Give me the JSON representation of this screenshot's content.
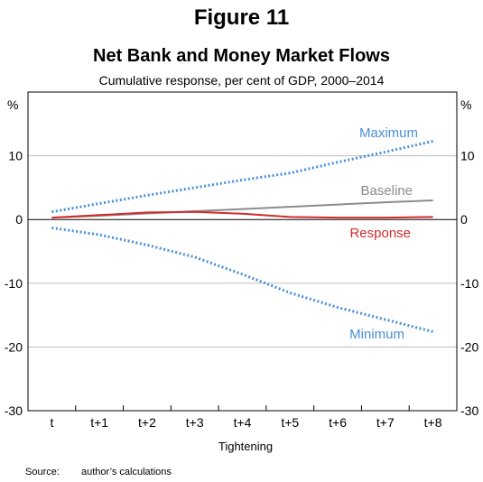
{
  "figure_label": "Figure 11",
  "source": {
    "label": "Source:",
    "text": "author’s calculations"
  },
  "chart_data": {
    "type": "line",
    "title": "Net Bank and Money Market Flows",
    "subtitle": "Cumulative response, per cent of GDP, 2000–2014",
    "xlabel": "Tightening",
    "yunit_left": "%",
    "yunit_right": "%",
    "categories": [
      "t",
      "t+1",
      "t+2",
      "t+3",
      "t+4",
      "t+5",
      "t+6",
      "t+7",
      "t+8"
    ],
    "ylim": [
      -30,
      20
    ],
    "yticks": [
      -30,
      -20,
      -10,
      0,
      10
    ],
    "grid": true,
    "series": [
      {
        "name": "Maximum",
        "color": "#4a90d9",
        "style": "dotted",
        "values": [
          1.2,
          2.5,
          3.8,
          5.0,
          6.2,
          7.3,
          9.0,
          10.6,
          12.3
        ]
      },
      {
        "name": "Baseline",
        "color": "#8c8c8c",
        "style": "solid",
        "values": [
          0.3,
          0.6,
          0.95,
          1.3,
          1.65,
          2.0,
          2.35,
          2.7,
          3.0
        ]
      },
      {
        "name": "Response",
        "color": "#d22b2b",
        "style": "solid",
        "values": [
          0.3,
          0.7,
          1.1,
          1.2,
          0.9,
          0.4,
          0.3,
          0.3,
          0.4
        ]
      },
      {
        "name": "Minimum",
        "color": "#4a90d9",
        "style": "dotted",
        "values": [
          -1.3,
          -2.4,
          -4.0,
          -5.9,
          -8.6,
          -11.5,
          -13.8,
          -15.7,
          -17.6
        ]
      }
    ]
  }
}
